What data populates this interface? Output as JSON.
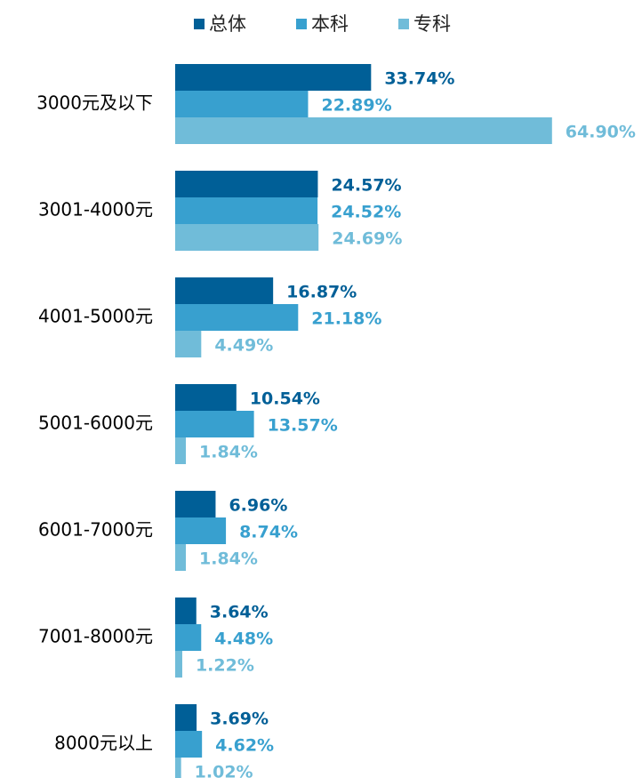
{
  "chart_data": {
    "type": "hbar",
    "categories": [
      "3000元及以下",
      "3001-4000元",
      "4001-5000元",
      "5001-6000元",
      "6001-7000元",
      "7001-8000元",
      "8000元以上"
    ],
    "series": [
      {
        "name": "总体",
        "color": "#005f97",
        "values": [
          33.74,
          24.57,
          16.87,
          10.54,
          6.96,
          3.64,
          3.69
        ],
        "value_labels": [
          "33.74%",
          "24.57%",
          "16.87%",
          "10.54%",
          "6.96%",
          "3.64%",
          "3.69%"
        ]
      },
      {
        "name": "本科",
        "color": "#38a0cf",
        "values": [
          22.89,
          24.52,
          21.18,
          13.57,
          8.74,
          4.48,
          4.62
        ],
        "value_labels": [
          "22.89%",
          "24.52%",
          "21.18%",
          "13.57%",
          "8.74%",
          "4.48%",
          "4.62%"
        ]
      },
      {
        "name": "专科",
        "color": "#70bcd9",
        "values": [
          64.9,
          24.69,
          4.49,
          1.84,
          1.84,
          1.22,
          1.02
        ],
        "value_labels": [
          "64.90%",
          "24.69%",
          "4.49%",
          "1.84%",
          "1.84%",
          "1.22%",
          "1.02%"
        ]
      }
    ],
    "legend": "top"
  }
}
